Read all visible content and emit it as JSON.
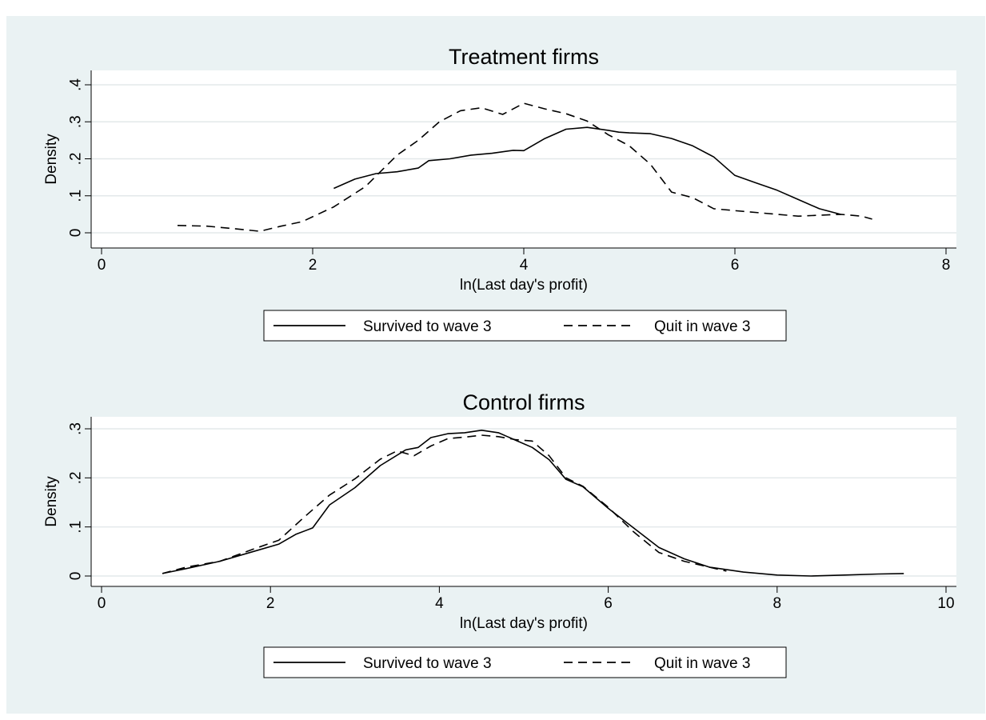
{
  "header_fragment": "",
  "chart_data": [
    {
      "type": "line",
      "title": "Treatment firms",
      "xlabel": "ln(Last day's profit)",
      "ylabel": "Density",
      "xlim": [
        0,
        8
      ],
      "ylim": [
        0,
        0.4
      ],
      "xticks": [
        "0",
        "2",
        "4",
        "6",
        "8"
      ],
      "yticks": [
        "0",
        ".1",
        ".2",
        ".3",
        ".4"
      ],
      "grid": true,
      "legend": "bottom",
      "series": [
        {
          "name": "Survived to wave 3",
          "style": "solid",
          "points": [
            [
              2.2,
              0.12
            ],
            [
              2.4,
              0.145
            ],
            [
              2.6,
              0.16
            ],
            [
              2.8,
              0.165
            ],
            [
              3.0,
              0.175
            ],
            [
              3.1,
              0.195
            ],
            [
              3.3,
              0.2
            ],
            [
              3.5,
              0.21
            ],
            [
              3.7,
              0.215
            ],
            [
              3.9,
              0.223
            ],
            [
              4.0,
              0.222
            ],
            [
              4.2,
              0.255
            ],
            [
              4.4,
              0.28
            ],
            [
              4.6,
              0.285
            ],
            [
              4.8,
              0.277
            ],
            [
              4.9,
              0.272
            ],
            [
              5.0,
              0.27
            ],
            [
              5.2,
              0.268
            ],
            [
              5.4,
              0.255
            ],
            [
              5.6,
              0.235
            ],
            [
              5.8,
              0.205
            ],
            [
              6.0,
              0.155
            ],
            [
              6.2,
              0.135
            ],
            [
              6.4,
              0.115
            ],
            [
              6.6,
              0.09
            ],
            [
              6.8,
              0.065
            ],
            [
              7.0,
              0.05
            ]
          ]
        },
        {
          "name": "Quit in wave 3",
          "style": "dashed",
          "points": [
            [
              0.72,
              0.02
            ],
            [
              1.0,
              0.018
            ],
            [
              1.3,
              0.01
            ],
            [
              1.5,
              0.004
            ],
            [
              1.7,
              0.018
            ],
            [
              1.9,
              0.03
            ],
            [
              2.2,
              0.07
            ],
            [
              2.5,
              0.125
            ],
            [
              2.8,
              0.21
            ],
            [
              3.0,
              0.25
            ],
            [
              3.2,
              0.3
            ],
            [
              3.4,
              0.33
            ],
            [
              3.6,
              0.338
            ],
            [
              3.8,
              0.32
            ],
            [
              4.0,
              0.35
            ],
            [
              4.2,
              0.335
            ],
            [
              4.4,
              0.322
            ],
            [
              4.6,
              0.302
            ],
            [
              4.8,
              0.265
            ],
            [
              5.0,
              0.235
            ],
            [
              5.2,
              0.185
            ],
            [
              5.4,
              0.11
            ],
            [
              5.6,
              0.095
            ],
            [
              5.8,
              0.065
            ],
            [
              6.0,
              0.06
            ],
            [
              6.4,
              0.05
            ],
            [
              6.6,
              0.045
            ],
            [
              7.0,
              0.05
            ],
            [
              7.2,
              0.045
            ],
            [
              7.3,
              0.037
            ]
          ]
        }
      ]
    },
    {
      "type": "line",
      "title": "Control firms",
      "xlabel": "ln(Last day's profit)",
      "ylabel": "Density",
      "xlim": [
        0,
        10
      ],
      "ylim": [
        0,
        0.3
      ],
      "xticks": [
        "0",
        "2",
        "4",
        "6",
        "8",
        "10"
      ],
      "yticks": [
        "0",
        ".1",
        ".2",
        ".3"
      ],
      "grid": true,
      "legend": "bottom",
      "series": [
        {
          "name": "Survived to wave 3",
          "style": "solid",
          "points": [
            [
              0.72,
              0.005
            ],
            [
              1.0,
              0.015
            ],
            [
              1.4,
              0.03
            ],
            [
              1.8,
              0.05
            ],
            [
              2.1,
              0.065
            ],
            [
              2.3,
              0.085
            ],
            [
              2.5,
              0.098
            ],
            [
              2.7,
              0.145
            ],
            [
              3.0,
              0.18
            ],
            [
              3.3,
              0.225
            ],
            [
              3.6,
              0.257
            ],
            [
              3.75,
              0.262
            ],
            [
              3.9,
              0.282
            ],
            [
              4.1,
              0.29
            ],
            [
              4.3,
              0.292
            ],
            [
              4.5,
              0.297
            ],
            [
              4.7,
              0.292
            ],
            [
              4.9,
              0.277
            ],
            [
              5.1,
              0.262
            ],
            [
              5.3,
              0.237
            ],
            [
              5.5,
              0.197
            ],
            [
              5.7,
              0.182
            ],
            [
              6.0,
              0.138
            ],
            [
              6.3,
              0.098
            ],
            [
              6.6,
              0.058
            ],
            [
              6.9,
              0.035
            ],
            [
              7.2,
              0.018
            ],
            [
              7.6,
              0.008
            ],
            [
              8.0,
              0.002
            ],
            [
              8.4,
              0.0
            ],
            [
              8.8,
              0.002
            ],
            [
              9.2,
              0.004
            ],
            [
              9.5,
              0.005
            ]
          ]
        },
        {
          "name": "Quit in wave 3",
          "style": "dashed",
          "points": [
            [
              0.72,
              0.005
            ],
            [
              1.0,
              0.018
            ],
            [
              1.4,
              0.03
            ],
            [
              1.8,
              0.055
            ],
            [
              2.1,
              0.073
            ],
            [
              2.4,
              0.12
            ],
            [
              2.7,
              0.165
            ],
            [
              3.0,
              0.198
            ],
            [
              3.3,
              0.238
            ],
            [
              3.5,
              0.255
            ],
            [
              3.7,
              0.245
            ],
            [
              3.9,
              0.265
            ],
            [
              4.1,
              0.28
            ],
            [
              4.3,
              0.283
            ],
            [
              4.5,
              0.287
            ],
            [
              4.7,
              0.284
            ],
            [
              4.9,
              0.278
            ],
            [
              5.1,
              0.275
            ],
            [
              5.3,
              0.245
            ],
            [
              5.5,
              0.2
            ],
            [
              5.7,
              0.183
            ],
            [
              6.0,
              0.14
            ],
            [
              6.3,
              0.09
            ],
            [
              6.6,
              0.048
            ],
            [
              6.9,
              0.03
            ],
            [
              7.2,
              0.018
            ],
            [
              7.4,
              0.01
            ]
          ]
        }
      ]
    }
  ]
}
